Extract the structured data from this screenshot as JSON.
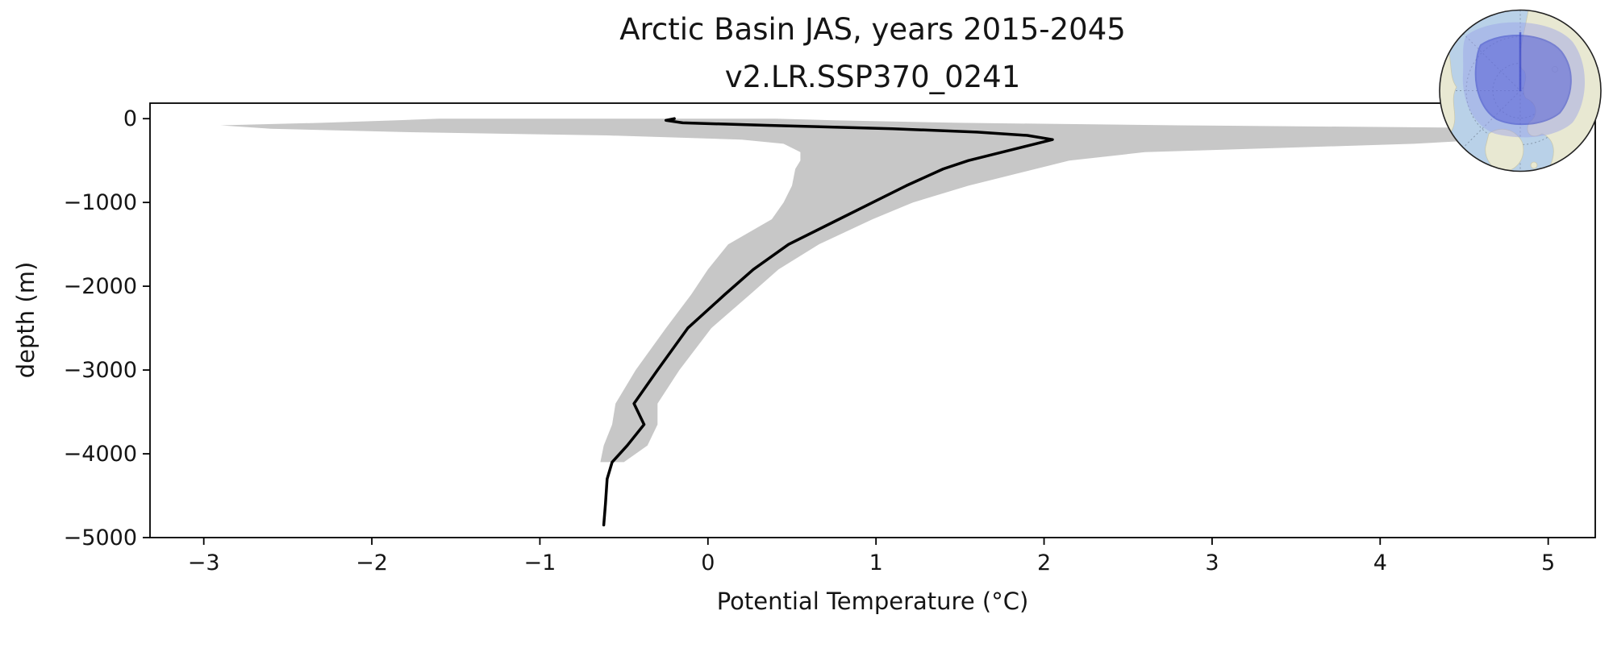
{
  "figure": {
    "title_line1": "Arctic Basin JAS, years 2015-2045",
    "title_line2": "v2.LR.SSP370_0241",
    "xlabel": "Potential Temperature (°C)",
    "ylabel": "depth (m)"
  },
  "chart_data": {
    "type": "line",
    "title": "Arctic Basin JAS, years 2015-2045 / v2.LR.SSP370_0241",
    "xlabel": "Potential Temperature (°C)",
    "ylabel": "depth (m)",
    "xlim": [
      -3.32,
      5.28
    ],
    "ylim": [
      -5000,
      185
    ],
    "x_ticks": [
      -3,
      -2,
      -1,
      0,
      1,
      2,
      3,
      4,
      5
    ],
    "y_ticks": [
      0,
      -1000,
      -2000,
      -3000,
      -4000,
      -5000
    ],
    "grid": false,
    "legend": "none",
    "series": [
      {
        "name": "mean potential temperature profile",
        "color": "#000000",
        "depth_m": [
          0,
          -20,
          -50,
          -80,
          -120,
          -160,
          -200,
          -250,
          -300,
          -400,
          -500,
          -600,
          -800,
          -1000,
          -1200,
          -1500,
          -1800,
          -2100,
          -2500,
          -3000,
          -3400,
          -3650,
          -3900,
          -4100,
          -4300,
          -4600,
          -4850
        ],
        "temperature_c": [
          -0.2,
          -0.25,
          -0.15,
          0.35,
          1.1,
          1.6,
          1.9,
          2.05,
          1.95,
          1.75,
          1.55,
          1.4,
          1.18,
          0.98,
          0.78,
          0.48,
          0.27,
          0.1,
          -0.12,
          -0.3,
          -0.44,
          -0.38,
          -0.48,
          -0.57,
          -0.6,
          -0.61,
          -0.62
        ]
      }
    ],
    "band": {
      "name": "min-max envelope",
      "color": "#c7c7c7",
      "depth_m": [
        0,
        -20,
        -50,
        -80,
        -120,
        -160,
        -200,
        -250,
        -300,
        -400,
        -500,
        -600,
        -800,
        -1000,
        -1200,
        -1500,
        -1800,
        -2100,
        -2500,
        -3000,
        -3400,
        -3650,
        -3900,
        -4100
      ],
      "min_c": [
        -1.6,
        -1.85,
        -2.3,
        -2.9,
        -2.6,
        -1.8,
        -0.6,
        0.2,
        0.45,
        0.55,
        0.55,
        0.52,
        0.5,
        0.45,
        0.38,
        0.12,
        0.0,
        -0.1,
        -0.25,
        -0.43,
        -0.55,
        -0.57,
        -0.62,
        -0.64
      ],
      "max_c": [
        0.4,
        0.75,
        1.5,
        2.8,
        5.25,
        4.9,
        4.7,
        4.65,
        4.2,
        2.6,
        2.15,
        1.95,
        1.55,
        1.22,
        0.98,
        0.66,
        0.42,
        0.25,
        0.02,
        -0.17,
        -0.3,
        -0.3,
        -0.36,
        -0.5
      ]
    }
  },
  "inset": {
    "name": "arctic-region-locator-globe",
    "colors": {
      "ocean": "#b9d1e8",
      "land": "#e8e8d2",
      "land_edge": "#c9c9b0",
      "region_fill_outer": "#98a0e8",
      "region_fill_inner": "#5660d6",
      "region_outline": "#3a46c6",
      "graticule": "#7d8da0",
      "globe_outline": "#222222"
    }
  },
  "style": {
    "line_width": 3.5,
    "spine_color": "#000000"
  }
}
